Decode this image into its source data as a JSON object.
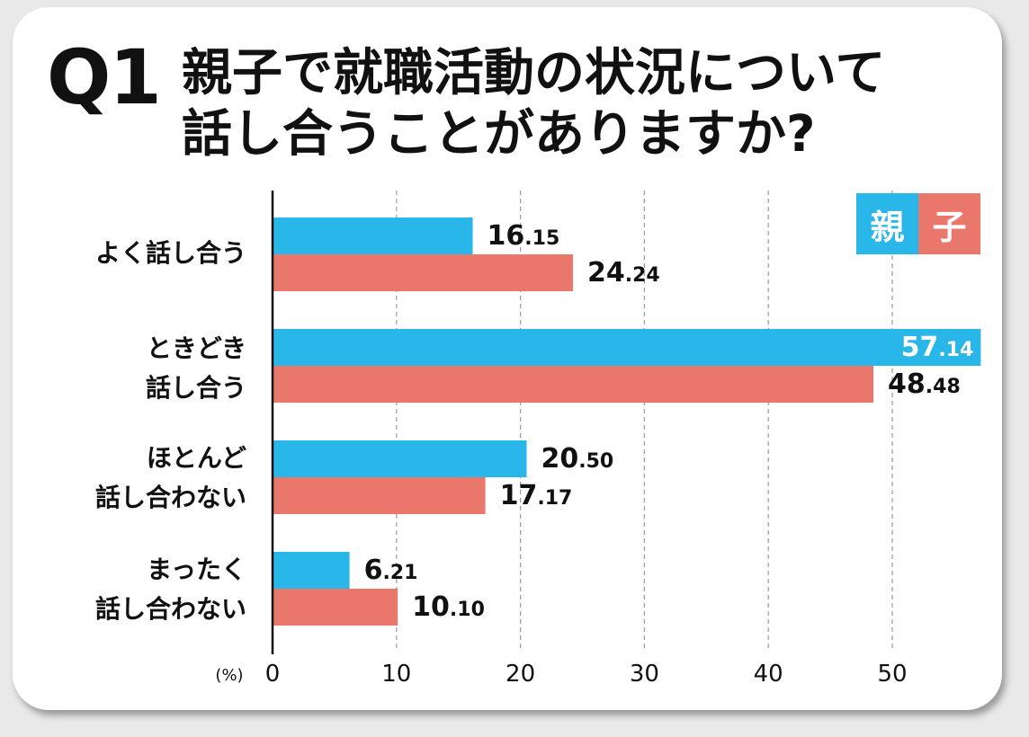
{
  "question": {
    "number": "Q1",
    "title": "親子で就職活動の状況について\n話し合うことがありますか?"
  },
  "chart_data": {
    "type": "bar",
    "orientation": "horizontal",
    "categories": [
      "よく話し合う",
      "ときどき\n話し合う",
      "ほとんど\n話し合わない",
      "まったく\n話し合わない"
    ],
    "series": [
      {
        "name": "親",
        "color": "#29b6e8",
        "values": [
          16.15,
          57.14,
          20.5,
          6.21
        ],
        "labels": [
          "16.15",
          "57.14",
          "20.50",
          "6.21"
        ]
      },
      {
        "name": "子",
        "color": "#ea776c",
        "values": [
          24.24,
          48.48,
          17.17,
          10.1
        ],
        "labels": [
          "24.24",
          "48.48",
          "17.17",
          "10.10"
        ]
      }
    ],
    "xlim": [
      0,
      57.14
    ],
    "xticks": [
      "0",
      "10",
      "20",
      "30",
      "40",
      "50"
    ],
    "xunit": "(%)",
    "grid": "dashed vertical",
    "legend": "top-right"
  }
}
